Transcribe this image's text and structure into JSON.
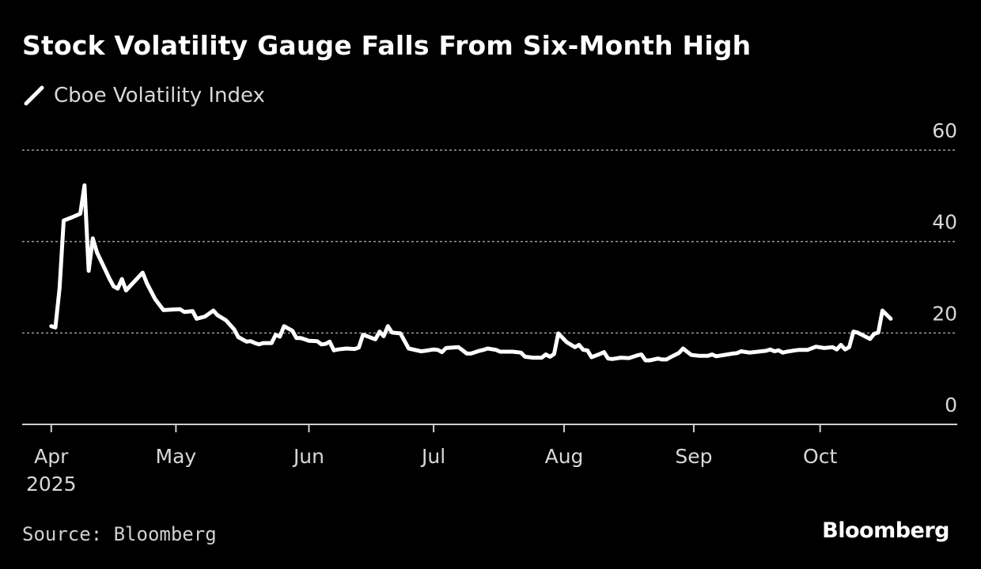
{
  "chart_data": {
    "type": "line",
    "title": "Stock Volatility Gauge Falls From Six-Month High",
    "legend": [
      "Cboe Volatility Index"
    ],
    "series": [
      {
        "name": "Cboe Volatility Index",
        "color": "#ffffff",
        "points": [
          [
            0,
            21.5
          ],
          [
            0.5,
            21.2
          ],
          [
            1,
            29.8
          ],
          [
            1.5,
            44.6
          ],
          [
            2.5,
            45.3
          ],
          [
            3.5,
            46.1
          ],
          [
            4,
            52.3
          ],
          [
            4.5,
            33.6
          ],
          [
            5,
            40.7
          ],
          [
            5.5,
            37.6
          ],
          [
            6.5,
            33.8
          ],
          [
            7,
            31.9
          ],
          [
            7.5,
            30.2
          ],
          [
            8,
            29.7
          ],
          [
            8.5,
            31.8
          ],
          [
            9,
            29.3
          ],
          [
            11,
            33.2
          ],
          [
            11.5,
            30.9
          ],
          [
            12.5,
            27.4
          ],
          [
            13.5,
            25.0
          ],
          [
            14.5,
            25.1
          ],
          [
            15.5,
            25.2
          ],
          [
            16,
            24.6
          ],
          [
            16.5,
            24.7
          ],
          [
            17,
            24.8
          ],
          [
            17.5,
            23.1
          ],
          [
            18.5,
            23.6
          ],
          [
            19.5,
            24.9
          ],
          [
            20,
            23.9
          ],
          [
            21,
            22.8
          ],
          [
            22,
            20.8
          ],
          [
            22.5,
            19.1
          ],
          [
            23.5,
            18.1
          ],
          [
            24,
            18.2
          ],
          [
            24.5,
            17.8
          ],
          [
            25,
            17.5
          ],
          [
            25.5,
            17.8
          ],
          [
            26.5,
            17.8
          ],
          [
            27,
            19.6
          ],
          [
            27.5,
            19.2
          ],
          [
            28,
            21.5
          ],
          [
            28.5,
            21.0
          ],
          [
            29,
            20.5
          ],
          [
            29.5,
            18.9
          ],
          [
            30,
            18.9
          ],
          [
            30.5,
            18.6
          ],
          [
            31,
            18.3
          ],
          [
            32,
            18.2
          ],
          [
            32.5,
            17.5
          ],
          [
            33,
            17.6
          ],
          [
            33.5,
            18.1
          ],
          [
            34,
            16.2
          ],
          [
            34.5,
            16.4
          ],
          [
            35.5,
            16.6
          ],
          [
            36.5,
            16.5
          ],
          [
            37,
            16.8
          ],
          [
            37.5,
            19.6
          ],
          [
            38,
            19.3
          ],
          [
            39,
            18.6
          ],
          [
            39.5,
            20.3
          ],
          [
            40,
            19.3
          ],
          [
            40.5,
            21.5
          ],
          [
            41,
            20.1
          ],
          [
            42,
            19.9
          ],
          [
            43,
            16.6
          ],
          [
            44.5,
            16.0
          ],
          [
            45,
            16.1
          ],
          [
            46,
            16.4
          ],
          [
            46.5,
            16.3
          ],
          [
            47,
            15.8
          ],
          [
            47.5,
            16.7
          ],
          [
            49,
            16.9
          ],
          [
            50,
            15.5
          ],
          [
            50.5,
            15.5
          ],
          [
            51.5,
            16.1
          ],
          [
            52,
            16.3
          ],
          [
            52.5,
            16.6
          ],
          [
            53.5,
            16.3
          ],
          [
            54,
            15.9
          ],
          [
            55.5,
            15.9
          ],
          [
            56.5,
            15.7
          ],
          [
            57,
            14.8
          ],
          [
            58,
            14.6
          ],
          [
            59,
            14.6
          ],
          [
            59.5,
            15.3
          ],
          [
            60,
            14.8
          ],
          [
            60.5,
            15.4
          ],
          [
            61,
            19.9
          ],
          [
            62,
            18.0
          ],
          [
            63,
            16.9
          ],
          [
            63.5,
            17.4
          ],
          [
            64,
            16.3
          ],
          [
            64.5,
            16.2
          ],
          [
            65,
            14.7
          ],
          [
            66,
            15.4
          ],
          [
            66.5,
            15.8
          ],
          [
            67,
            14.4
          ],
          [
            67.5,
            14.3
          ],
          [
            68.5,
            14.6
          ],
          [
            69.5,
            14.5
          ],
          [
            70.5,
            15.1
          ],
          [
            71,
            15.3
          ],
          [
            71.5,
            14.0
          ],
          [
            72,
            14.0
          ],
          [
            73,
            14.4
          ],
          [
            73.5,
            14.2
          ],
          [
            74,
            14.2
          ],
          [
            74.5,
            14.7
          ],
          [
            75.5,
            15.6
          ],
          [
            76,
            16.6
          ],
          [
            77,
            15.2
          ],
          [
            78,
            15.0
          ],
          [
            79,
            15.0
          ],
          [
            79.5,
            15.3
          ],
          [
            80,
            14.9
          ],
          [
            81,
            15.2
          ],
          [
            82,
            15.5
          ],
          [
            82.5,
            15.6
          ],
          [
            83,
            16.0
          ],
          [
            84,
            15.7
          ],
          [
            84.5,
            15.8
          ],
          [
            86,
            16.1
          ],
          [
            86.5,
            16.4
          ],
          [
            87,
            16.0
          ],
          [
            87.5,
            16.2
          ],
          [
            88,
            15.7
          ],
          [
            88.5,
            15.9
          ],
          [
            89.5,
            16.2
          ],
          [
            90,
            16.3
          ],
          [
            91,
            16.3
          ],
          [
            92,
            17.0
          ],
          [
            93,
            16.7
          ],
          [
            94,
            16.9
          ],
          [
            94.5,
            16.4
          ],
          [
            95,
            17.4
          ],
          [
            95.5,
            16.4
          ],
          [
            96,
            16.9
          ],
          [
            96.5,
            20.3
          ],
          [
            97,
            20.1
          ],
          [
            98.5,
            18.7
          ],
          [
            99,
            19.8
          ],
          [
            99.5,
            20.1
          ],
          [
            100,
            24.9
          ],
          [
            101,
            23.1
          ]
        ]
      }
    ],
    "x_ticks": [
      {
        "pos": 0,
        "label": "Apr",
        "sublabel": "2025"
      },
      {
        "pos": 15,
        "label": "May"
      },
      {
        "pos": 31,
        "label": "Jun"
      },
      {
        "pos": 46,
        "label": "Jul"
      },
      {
        "pos": 61.7,
        "label": "Aug"
      },
      {
        "pos": 77.3,
        "label": "Sep"
      },
      {
        "pos": 92.5,
        "label": "Oct"
      }
    ],
    "xlim": [
      -3.5,
      109
    ],
    "ylim": [
      0,
      60
    ],
    "yticks": [
      0,
      20,
      40,
      60
    ],
    "grid": true,
    "legend_position": "top-left",
    "xlabel": "",
    "ylabel": "",
    "source": "Source: Bloomberg",
    "brand": "Bloomberg"
  }
}
